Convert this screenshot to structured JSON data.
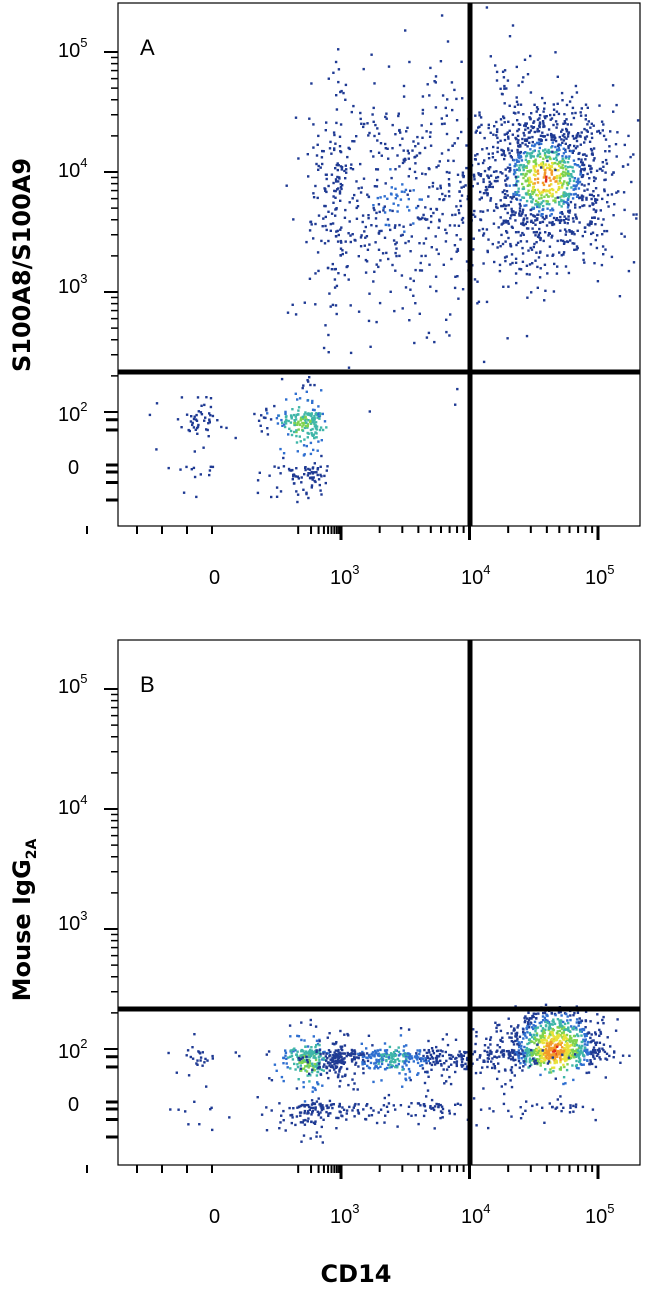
{
  "figure": {
    "x_axis_label": "CD14",
    "density_colors": [
      "#1f3a93",
      "#2f6fd0",
      "#3fb6a8",
      "#7fd34e",
      "#e8e23a",
      "#f39a2a",
      "#e02a1c"
    ]
  },
  "chart_data": [
    {
      "type": "scatter",
      "panel_label": "A",
      "ylabel": "S100A8/S100A9",
      "xscale": "biexponential",
      "yscale": "biexponential",
      "x_ticks": [
        "0",
        "10^3",
        "10^4",
        "10^5"
      ],
      "y_ticks": [
        "0",
        "10^2",
        "10^3",
        "10^4",
        "10^5"
      ],
      "quadrant_gate": {
        "x": 8500,
        "y": 200
      },
      "populations": [
        {
          "x_center": 120,
          "y_center": 40,
          "x_spread": 120,
          "y_spread": 55,
          "count": 340,
          "peak_density": 3
        },
        {
          "x_center": 38000,
          "y_center": 9000,
          "x_spread": 0.28,
          "y_spread": 0.34,
          "count": 1250,
          "peak_density": 6
        },
        {
          "x_center": 2500,
          "y_center": 6000,
          "x_spread": 0.55,
          "y_spread": 0.55,
          "count": 650,
          "peak_density": 1
        }
      ]
    },
    {
      "type": "scatter",
      "panel_label": "B",
      "ylabel_main": "Mouse IgG",
      "ylabel_subscript": "2A",
      "xscale": "biexponential",
      "yscale": "biexponential",
      "x_ticks": [
        "0",
        "10^3",
        "10^4",
        "10^5"
      ],
      "y_ticks": [
        "0",
        "10^2",
        "10^3",
        "10^4",
        "10^5"
      ],
      "quadrant_gate": {
        "x": 8500,
        "y": 200
      },
      "populations": [
        {
          "x_center": 140,
          "y_center": 30,
          "x_spread": 120,
          "y_spread": 50,
          "count": 330,
          "peak_density": 3
        },
        {
          "x_center": 45000,
          "y_center": 100,
          "x_spread": 0.2,
          "y_spread": 50,
          "count": 950,
          "peak_density": 6
        },
        {
          "x_center": 2500,
          "y_center": 40,
          "x_spread": 0.5,
          "y_spread": 40,
          "count": 700,
          "peak_density": 2
        }
      ]
    }
  ]
}
